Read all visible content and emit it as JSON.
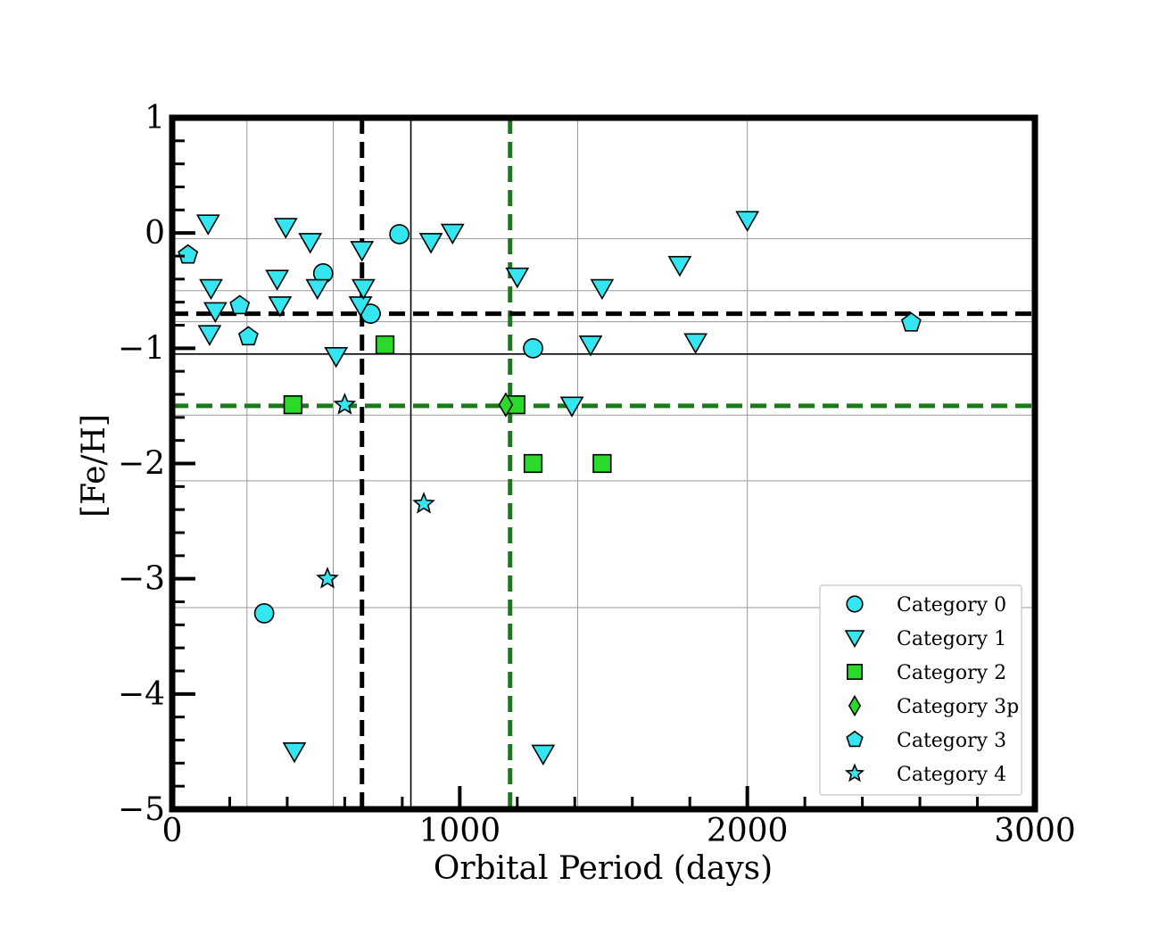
{
  "chart_data": {
    "type": "scatter",
    "title": "",
    "xlabel": "Orbital Period (days)",
    "ylabel": "[Fe/H]",
    "xlim": [
      0,
      3000
    ],
    "ylim": [
      -5,
      1
    ],
    "xticks": [
      {
        "value": 0,
        "label": "0"
      },
      {
        "value": 1000,
        "label": "1000"
      },
      {
        "value": 2000,
        "label": "2000"
      },
      {
        "value": 3000,
        "label": "3000"
      }
    ],
    "yticks": [
      {
        "value": 1,
        "label": "1"
      },
      {
        "value": 0,
        "label": "0"
      },
      {
        "value": -1,
        "label": "−1"
      },
      {
        "value": -2,
        "label": "−2"
      },
      {
        "value": -3,
        "label": "−3"
      },
      {
        "value": -4,
        "label": "−4"
      },
      {
        "value": -5,
        "label": "−5"
      }
    ],
    "x_minor_step": 200,
    "y_minor_step": 0.2,
    "grid": true,
    "grid_x": [
      260,
      560,
      1410,
      2000
    ],
    "grid_y": [
      -0.05,
      -0.5,
      -0.77,
      -1.58,
      -2.15,
      -3.25
    ],
    "reference_lines": [
      {
        "orientation": "vertical",
        "value": 660,
        "style": "dashed",
        "color": "#000000"
      },
      {
        "orientation": "vertical",
        "value": 830,
        "style": "solid",
        "color": "#000000"
      },
      {
        "orientation": "vertical",
        "value": 1175,
        "style": "dashed",
        "color": "#1a7a1a"
      },
      {
        "orientation": "horizontal",
        "value": -0.7,
        "style": "dashed",
        "color": "#000000"
      },
      {
        "orientation": "horizontal",
        "value": -1.05,
        "style": "solid",
        "color": "#000000"
      },
      {
        "orientation": "horizontal",
        "value": -1.5,
        "style": "dashed",
        "color": "#1a7a1a"
      }
    ],
    "legend_position": "lower-right",
    "series": [
      {
        "name": "Category 0",
        "marker": "circle",
        "color": "#33e6f0",
        "points": [
          [
            320,
            -3.3
          ],
          [
            525,
            -0.35
          ],
          [
            690,
            -0.7
          ],
          [
            790,
            -0.01
          ],
          [
            1255,
            -1.0
          ]
        ]
      },
      {
        "name": "Category 1",
        "marker": "triangle-down",
        "color": "#33e6f0",
        "points": [
          [
            125,
            0.08
          ],
          [
            130,
            -0.88
          ],
          [
            135,
            -0.48
          ],
          [
            150,
            -0.68
          ],
          [
            365,
            -0.4
          ],
          [
            375,
            -0.63
          ],
          [
            395,
            0.05
          ],
          [
            425,
            -4.5
          ],
          [
            480,
            -0.08
          ],
          [
            505,
            -0.48
          ],
          [
            570,
            -1.07
          ],
          [
            655,
            -0.63
          ],
          [
            660,
            -0.15
          ],
          [
            665,
            -0.48
          ],
          [
            900,
            -0.08
          ],
          [
            975,
            0.0
          ],
          [
            1200,
            -0.38
          ],
          [
            1390,
            -1.5
          ],
          [
            1290,
            -4.52
          ],
          [
            1455,
            -0.97
          ],
          [
            1495,
            -0.48
          ],
          [
            1765,
            -0.28
          ],
          [
            1820,
            -0.95
          ],
          [
            2000,
            0.11
          ]
        ]
      },
      {
        "name": "Category 2",
        "marker": "square",
        "color": "#2bd92b",
        "points": [
          [
            420,
            -1.49
          ],
          [
            740,
            -0.97
          ],
          [
            1195,
            -1.49
          ],
          [
            1255,
            -2.0
          ],
          [
            1495,
            -2.0
          ]
        ]
      },
      {
        "name": "Category 3p",
        "marker": "diamond",
        "color": "#2bd92b",
        "points": [
          [
            1160,
            -1.49
          ]
        ]
      },
      {
        "name": "Category 3",
        "marker": "pentagon",
        "color": "#33e6f0",
        "points": [
          [
            55,
            -0.19
          ],
          [
            235,
            -0.63
          ],
          [
            265,
            -0.9
          ],
          [
            2570,
            -0.78
          ]
        ]
      },
      {
        "name": "Category 4",
        "marker": "star",
        "color": "#33e6f0",
        "points": [
          [
            540,
            -3.0
          ],
          [
            600,
            -1.49
          ],
          [
            875,
            -2.35
          ]
        ]
      }
    ]
  }
}
